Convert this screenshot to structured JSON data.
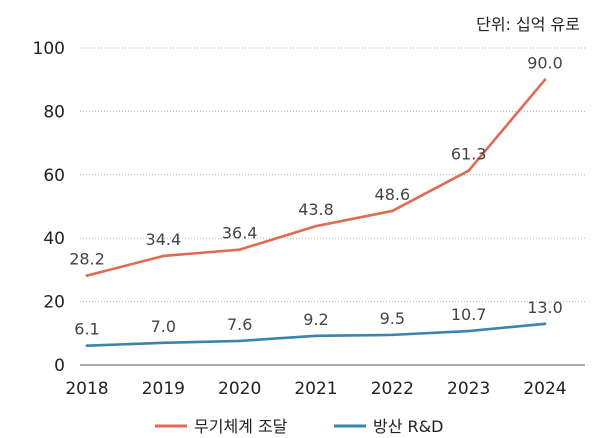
{
  "chart_data": {
    "type": "line",
    "unit_label": "단위: 십억 유로",
    "categories": [
      "2018",
      "2019",
      "2020",
      "2021",
      "2022",
      "2023",
      "2024"
    ],
    "ylim": [
      0,
      100
    ],
    "yticks": [
      0,
      20,
      40,
      60,
      80,
      100
    ],
    "grid": "horizontal-dotted",
    "legend_position": "bottom",
    "series": [
      {
        "name": "무기체계 조달",
        "color": "#e06b55",
        "values": [
          28.2,
          34.4,
          36.4,
          43.8,
          48.6,
          61.3,
          90.0
        ],
        "labels": [
          "28.2",
          "34.4",
          "36.4",
          "43.8",
          "48.6",
          "61.3",
          "90.0"
        ]
      },
      {
        "name": "방산 R&D",
        "color": "#3b84ae",
        "values": [
          6.1,
          7.0,
          7.6,
          9.2,
          9.5,
          10.7,
          13.0
        ],
        "labels": [
          "6.1",
          "7.0",
          "7.6",
          "9.2",
          "9.5",
          "10.7",
          "13.0"
        ]
      }
    ]
  }
}
